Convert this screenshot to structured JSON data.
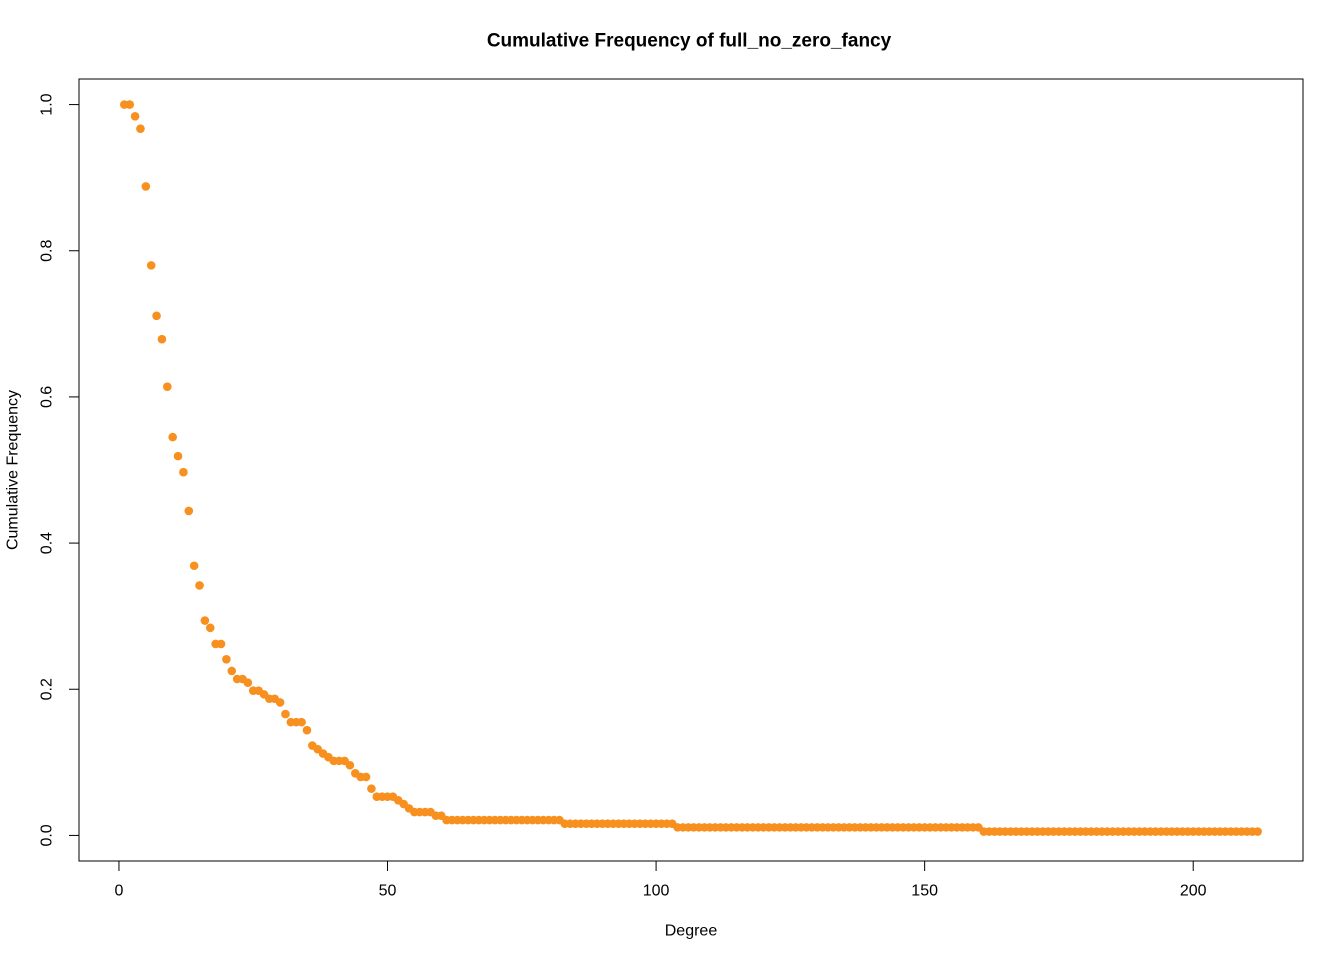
{
  "chart_data": {
    "type": "scatter",
    "title": "Cumulative Frequency of full_no_zero_fancy",
    "x_label": "Degree",
    "y_label": "Cumulative Frequency",
    "color": "#f7901e",
    "xlim": [
      -7.44,
      220.44
    ],
    "ylim": [
      -0.035,
      1.035
    ],
    "xticks": [
      0,
      50,
      100,
      150,
      200
    ],
    "yticks": [
      {
        "value": 0,
        "label": "0.0"
      },
      0.2,
      0.4,
      0.6,
      0.8,
      {
        "value": 1,
        "label": "1.0"
      }
    ],
    "x": [
      1,
      2,
      3,
      4,
      5,
      6,
      7,
      8,
      9,
      10,
      11,
      12,
      13,
      14,
      15,
      16,
      17,
      18,
      19,
      20,
      21,
      22,
      23,
      24,
      25,
      26,
      27,
      28,
      29,
      30,
      31,
      32,
      33,
      34,
      35,
      36,
      37,
      38,
      39,
      40,
      41,
      42,
      43,
      44,
      45,
      46,
      47,
      48,
      49,
      50,
      51,
      52,
      53,
      54,
      55,
      56,
      57,
      58,
      59,
      60,
      61,
      62,
      63,
      64,
      65,
      66,
      67,
      68,
      69,
      70,
      71,
      72,
      73,
      74,
      75,
      76,
      77,
      78,
      79,
      80,
      81,
      82,
      83,
      84,
      85,
      86,
      87,
      88,
      89,
      90,
      91,
      92,
      93,
      94,
      95,
      96,
      97,
      98,
      99,
      100,
      101,
      102,
      103,
      104,
      105,
      106,
      107,
      108,
      109,
      110,
      111,
      112,
      113,
      114,
      115,
      116,
      117,
      118,
      119,
      120,
      121,
      122,
      123,
      124,
      125,
      126,
      127,
      128,
      129,
      130,
      131,
      132,
      133,
      134,
      135,
      136,
      137,
      138,
      139,
      140,
      141,
      142,
      143,
      144,
      145,
      146,
      147,
      148,
      149,
      150,
      151,
      152,
      153,
      154,
      155,
      156,
      157,
      158,
      159,
      160,
      161,
      162,
      163,
      164,
      165,
      166,
      167,
      168,
      169,
      170,
      171,
      172,
      173,
      174,
      175,
      176,
      177,
      178,
      179,
      180,
      181,
      182,
      183,
      184,
      185,
      186,
      187,
      188,
      189,
      190,
      191,
      192,
      193,
      194,
      195,
      196,
      197,
      198,
      199,
      200,
      201,
      202,
      203,
      204,
      205,
      206,
      207,
      208,
      209,
      210,
      211,
      212
    ],
    "values": [
      1.0,
      1.0,
      0.984,
      0.967,
      0.888,
      0.78,
      0.711,
      0.679,
      0.614,
      0.545,
      0.519,
      0.497,
      0.444,
      0.369,
      0.342,
      0.294,
      0.284,
      0.262,
      0.262,
      0.241,
      0.225,
      0.214,
      0.214,
      0.209,
      0.198,
      0.198,
      0.193,
      0.187,
      0.187,
      0.182,
      0.166,
      0.155,
      0.155,
      0.155,
      0.144,
      0.123,
      0.118,
      0.112,
      0.107,
      0.102,
      0.102,
      0.102,
      0.096,
      0.085,
      0.08,
      0.08,
      0.064,
      0.053,
      0.053,
      0.053,
      0.053,
      0.048,
      0.043,
      0.037,
      0.032,
      0.032,
      0.032,
      0.032,
      0.027,
      0.027,
      0.021,
      0.021,
      0.021,
      0.021,
      0.021,
      0.021,
      0.021,
      0.021,
      0.021,
      0.021,
      0.021,
      0.021,
      0.021,
      0.021,
      0.021,
      0.021,
      0.021,
      0.021,
      0.021,
      0.021,
      0.021,
      0.021,
      0.016,
      0.016,
      0.016,
      0.016,
      0.016,
      0.016,
      0.016,
      0.016,
      0.016,
      0.016,
      0.016,
      0.016,
      0.016,
      0.016,
      0.016,
      0.016,
      0.016,
      0.016,
      0.016,
      0.016,
      0.016,
      0.011,
      0.011,
      0.011,
      0.011,
      0.011,
      0.011,
      0.011,
      0.011,
      0.011,
      0.011,
      0.011,
      0.011,
      0.011,
      0.011,
      0.011,
      0.011,
      0.011,
      0.011,
      0.011,
      0.011,
      0.011,
      0.011,
      0.011,
      0.011,
      0.011,
      0.011,
      0.011,
      0.011,
      0.011,
      0.011,
      0.011,
      0.011,
      0.011,
      0.011,
      0.011,
      0.011,
      0.011,
      0.011,
      0.011,
      0.011,
      0.011,
      0.011,
      0.011,
      0.011,
      0.011,
      0.011,
      0.011,
      0.011,
      0.011,
      0.011,
      0.011,
      0.011,
      0.011,
      0.011,
      0.011,
      0.011,
      0.011,
      0.0053,
      0.0053,
      0.0053,
      0.0053,
      0.0053,
      0.0053,
      0.0053,
      0.0053,
      0.0053,
      0.0053,
      0.0053,
      0.0053,
      0.0053,
      0.0053,
      0.0053,
      0.0053,
      0.0053,
      0.0053,
      0.0053,
      0.0053,
      0.0053,
      0.0053,
      0.0053,
      0.0053,
      0.0053,
      0.0053,
      0.0053,
      0.0053,
      0.0053,
      0.0053,
      0.0053,
      0.0053,
      0.0053,
      0.0053,
      0.0053,
      0.0053,
      0.0053,
      0.0053,
      0.0053,
      0.0053,
      0.0053,
      0.0053,
      0.0053,
      0.0053,
      0.0053,
      0.0053,
      0.0053,
      0.0053,
      0.0053,
      0.0053,
      0.0053,
      0.0053
    ]
  }
}
